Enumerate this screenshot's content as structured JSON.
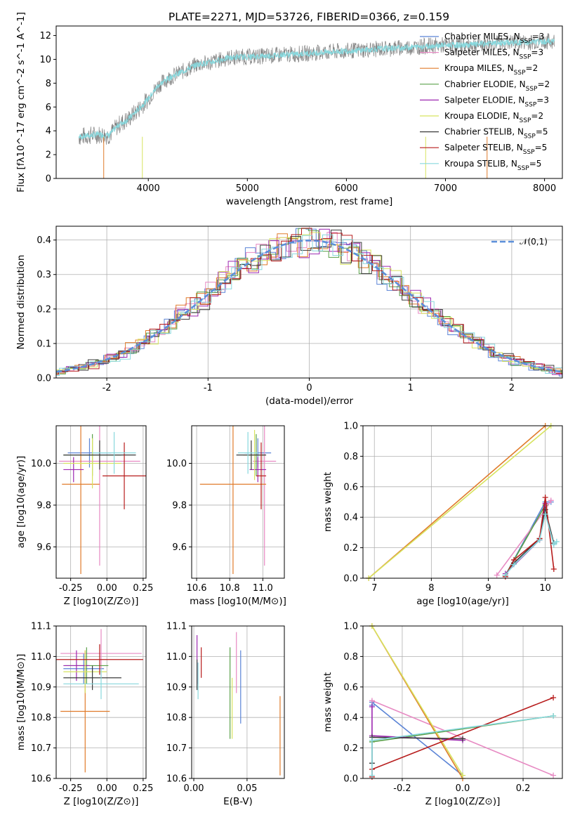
{
  "title": "PLATE=2271, MJD=53726, FIBERID=0366, z=0.159",
  "legend": [
    {
      "label": "Chabrier MILES, N_SSP=3",
      "color": "#5b84d6"
    },
    {
      "label": "Salpeter MILES, N_SSP=3",
      "color": "#e78ac3"
    },
    {
      "label": "Kroupa MILES, N_SSP=2",
      "color": "#e07b2b"
    },
    {
      "label": "Chabrier ELODIE, N_SSP=2",
      "color": "#5aa04a"
    },
    {
      "label": "Salpeter ELODIE, N_SSP=3",
      "color": "#9c27b0"
    },
    {
      "label": "Kroupa ELODIE, N_SSP=2",
      "color": "#d7e35f"
    },
    {
      "label": "Chabrier STELIB, N_SSP=5",
      "color": "#3b3b3b"
    },
    {
      "label": "Salpeter STELIB, N_SSP=5",
      "color": "#b71c1c"
    },
    {
      "label": "Kroupa STELIB, N_SSP=5",
      "color": "#88d8dd"
    }
  ],
  "chart_data": [
    {
      "type": "line",
      "panel": "spectrum",
      "title": "PLATE=2271, MJD=53726, FIBERID=0366, z=0.159",
      "xlabel": "wavelength [Angstrom, rest frame]",
      "ylabel": "Flux [fλ10^-17 erg cm^-2 s^-1 A^-1]",
      "xlim": [
        3070,
        8180
      ],
      "ylim": [
        0,
        12.8
      ],
      "xticks": [
        4000,
        5000,
        6000,
        7000,
        8000
      ],
      "yticks": [
        0,
        2,
        4,
        6,
        8,
        10,
        12
      ],
      "data_color": "#808080",
      "model_color": "#88d8dd",
      "x": [
        3300,
        3400,
        3500,
        3600,
        3700,
        3800,
        3900,
        4000,
        4100,
        4200,
        4300,
        4400,
        4500,
        4600,
        4700,
        4800,
        4900,
        5000,
        5200,
        5400,
        5600,
        5800,
        6000,
        6200,
        6400,
        6600,
        6800,
        7000,
        7200,
        7400,
        7600,
        7800,
        8000,
        8100
      ],
      "y": [
        3.5,
        3.6,
        3.7,
        3.6,
        4.5,
        5.0,
        5.8,
        6.7,
        7.8,
        8.4,
        8.8,
        9.2,
        9.6,
        9.7,
        9.9,
        10.1,
        10.2,
        10.2,
        10.3,
        10.4,
        10.5,
        10.6,
        10.7,
        10.8,
        10.9,
        11.0,
        11.1,
        11.2,
        11.2,
        11.3,
        11.4,
        11.4,
        11.5,
        11.5
      ]
    },
    {
      "type": "line",
      "panel": "residuals",
      "xlabel": "(data-model)/error",
      "ylabel": "Normed distribution",
      "xlim": [
        -2.5,
        2.5
      ],
      "ylim": [
        0,
        0.44
      ],
      "xticks": [
        -2,
        -1,
        0,
        1,
        2
      ],
      "yticks": [
        0.0,
        0.1,
        0.2,
        0.3,
        0.4
      ],
      "series": [
        {
          "name": "𝒩(0,1)",
          "color": "#5b8fd9"
        }
      ],
      "bin_width": 0.1
    },
    {
      "type": "scatter",
      "panel": "age-vs-Z",
      "xlabel": "Z [log10(Z/Z⊙)]",
      "ylabel": "age  [log10(age/yr)]",
      "xlim": [
        -0.35,
        0.27
      ],
      "ylim": [
        9.45,
        10.18
      ],
      "xticks": [
        -0.25,
        0.0,
        0.25
      ],
      "yticks": [
        9.6,
        9.8,
        10.0
      ],
      "points": [
        {
          "x": -0.12,
          "y": 10.05,
          "xe": 0.15,
          "ye": 0.07,
          "c": 0
        },
        {
          "x": -0.05,
          "y": 10.01,
          "xe": 0.28,
          "ye": 0.5,
          "c": 1
        },
        {
          "x": -0.18,
          "y": 9.9,
          "xe": 0.13,
          "ye": 0.43,
          "c": 2
        },
        {
          "x": -0.1,
          "y": 10.04,
          "xe": 0.2,
          "ye": 0.1,
          "c": 3
        },
        {
          "x": -0.23,
          "y": 9.97,
          "xe": 0.07,
          "ye": 0.06,
          "c": 4
        },
        {
          "x": -0.1,
          "y": 10.0,
          "xe": 0.2,
          "ye": 0.12,
          "c": 5
        },
        {
          "x": -0.05,
          "y": 10.04,
          "xe": 0.25,
          "ye": 0.07,
          "c": 6
        },
        {
          "x": 0.12,
          "y": 9.94,
          "xe": 0.15,
          "ye": 0.16,
          "c": 7
        },
        {
          "x": 0.05,
          "y": 10.05,
          "xe": 0.15,
          "ye": 0.1,
          "c": 8
        }
      ]
    },
    {
      "type": "scatter",
      "panel": "age-vs-mass",
      "xlabel": "mass [log10(M/M⊙)]",
      "ylabel": "",
      "xlim": [
        10.57,
        11.13
      ],
      "ylim": [
        9.45,
        10.18
      ],
      "xticks": [
        10.6,
        10.8,
        11.0
      ],
      "yticks": [
        9.6,
        9.8,
        10.0
      ],
      "points": [
        {
          "x": 10.97,
          "y": 10.05,
          "xe": 0.08,
          "ye": 0.07,
          "c": 0
        },
        {
          "x": 11.01,
          "y": 10.01,
          "xe": 0.07,
          "ye": 0.5,
          "c": 1
        },
        {
          "x": 10.82,
          "y": 9.9,
          "xe": 0.2,
          "ye": 0.43,
          "c": 2
        },
        {
          "x": 10.96,
          "y": 10.04,
          "xe": 0.05,
          "ye": 0.1,
          "c": 3
        },
        {
          "x": 10.97,
          "y": 9.97,
          "xe": 0.05,
          "ye": 0.06,
          "c": 4
        },
        {
          "x": 10.95,
          "y": 10.04,
          "xe": 0.07,
          "ye": 0.12,
          "c": 5
        },
        {
          "x": 10.93,
          "y": 10.04,
          "xe": 0.09,
          "ye": 0.07,
          "c": 6
        },
        {
          "x": 10.99,
          "y": 9.94,
          "xe": 0.03,
          "ye": 0.16,
          "c": 7
        },
        {
          "x": 10.91,
          "y": 10.05,
          "xe": 0.06,
          "ye": 0.1,
          "c": 8
        }
      ]
    },
    {
      "type": "line",
      "panel": "mass-weight-vs-age",
      "xlabel": "age  [log10(age/yr)]",
      "ylabel": "mass weight",
      "xlim": [
        6.8,
        10.3
      ],
      "ylim": [
        0,
        1.0
      ],
      "xticks": [
        7,
        8,
        9,
        10
      ],
      "yticks": [
        0.0,
        0.2,
        0.4,
        0.6,
        0.8,
        1.0
      ],
      "series": [
        {
          "c": 0,
          "x": [
            9.3,
            10.0,
            10.1
          ],
          "y": [
            0.02,
            0.5,
            0.5
          ]
        },
        {
          "c": 1,
          "x": [
            9.15,
            10.0,
            10.1
          ],
          "y": [
            0.02,
            0.45,
            0.51
          ]
        },
        {
          "c": 2,
          "x": [
            6.9,
            10.0
          ],
          "y": [
            0.0,
            1.0
          ]
        },
        {
          "c": 3,
          "x": [
            9.3,
            10.0
          ],
          "y": [
            0.02,
            0.48
          ]
        },
        {
          "c": 4,
          "x": [
            9.3,
            9.9,
            10.0
          ],
          "y": [
            0.03,
            0.25,
            0.49
          ]
        },
        {
          "c": 5,
          "x": [
            6.9,
            10.1
          ],
          "y": [
            0.0,
            1.0
          ]
        },
        {
          "c": 6,
          "x": [
            9.3,
            9.45,
            9.9,
            10.0,
            10.15
          ],
          "y": [
            0.02,
            0.1,
            0.26,
            0.45,
            0.23
          ]
        },
        {
          "c": 7,
          "x": [
            9.3,
            9.45,
            9.9,
            10.0,
            10.15
          ],
          "y": [
            0.01,
            0.12,
            0.26,
            0.53,
            0.06
          ]
        },
        {
          "c": 8,
          "x": [
            9.3,
            9.45,
            9.9,
            10.0,
            10.15,
            10.2
          ],
          "y": [
            0.02,
            0.09,
            0.25,
            0.42,
            0.22,
            0.24
          ]
        }
      ]
    },
    {
      "type": "scatter",
      "panel": "mass-vs-Z",
      "xlabel": "Z [log10(Z/Z⊙)]",
      "ylabel": "mass [log10(M/M⊙)]",
      "xlim": [
        -0.35,
        0.27
      ],
      "ylim": [
        10.6,
        11.1
      ],
      "xticks": [
        -0.25,
        0.0,
        0.25
      ],
      "yticks": [
        10.6,
        10.7,
        10.8,
        10.9,
        11.0,
        11.1
      ],
      "points": [
        {
          "x": -0.16,
          "y": 10.96,
          "xe": 0.14,
          "ye": 0.05,
          "c": 0
        },
        {
          "x": -0.04,
          "y": 11.01,
          "xe": 0.28,
          "ye": 0.08,
          "c": 1
        },
        {
          "x": -0.15,
          "y": 10.82,
          "xe": 0.17,
          "ye": 0.2,
          "c": 2
        },
        {
          "x": -0.14,
          "y": 10.97,
          "xe": 0.15,
          "ye": 0.06,
          "c": 3
        },
        {
          "x": -0.21,
          "y": 10.97,
          "xe": 0.09,
          "ye": 0.05,
          "c": 4
        },
        {
          "x": -0.15,
          "y": 10.95,
          "xe": 0.15,
          "ye": 0.07,
          "c": 5
        },
        {
          "x": -0.1,
          "y": 10.93,
          "xe": 0.2,
          "ye": 0.04,
          "c": 6
        },
        {
          "x": -0.05,
          "y": 10.99,
          "xe": 0.3,
          "ye": 0.05,
          "c": 7
        },
        {
          "x": -0.04,
          "y": 10.91,
          "xe": 0.26,
          "ye": 0.05,
          "c": 8
        }
      ]
    },
    {
      "type": "scatter",
      "panel": "mass-vs-EBV",
      "xlabel": "E(B-V)",
      "ylabel": "",
      "xlim": [
        -0.002,
        0.085
      ],
      "ylim": [
        10.6,
        11.1
      ],
      "xticks": [
        0.0,
        0.05
      ],
      "yticks": [
        10.6,
        10.7,
        10.8,
        10.9,
        11.0,
        11.1
      ],
      "points": [
        {
          "x": 0.044,
          "y": 10.9,
          "ye": 0.12,
          "c": 0
        },
        {
          "x": 0.04,
          "y": 10.98,
          "ye": 0.1,
          "c": 1
        },
        {
          "x": 0.081,
          "y": 10.74,
          "ye": 0.13,
          "c": 2
        },
        {
          "x": 0.034,
          "y": 10.88,
          "ye": 0.15,
          "c": 3
        },
        {
          "x": 0.003,
          "y": 10.99,
          "ye": 0.08,
          "c": 4
        },
        {
          "x": 0.036,
          "y": 10.83,
          "ye": 0.1,
          "c": 5
        },
        {
          "x": 0.003,
          "y": 10.94,
          "ye": 0.05,
          "c": 6
        },
        {
          "x": 0.007,
          "y": 10.98,
          "ye": 0.05,
          "c": 7
        },
        {
          "x": 0.004,
          "y": 10.92,
          "ye": 0.06,
          "c": 8
        }
      ]
    },
    {
      "type": "line",
      "panel": "mass-weight-vs-Z",
      "xlabel": "Z [log10(Z/Z⊙)]",
      "ylabel": "mass weight",
      "xlim": [
        -0.33,
        0.33
      ],
      "ylim": [
        0,
        1.0
      ],
      "xticks": [
        -0.2,
        0.0,
        0.2
      ],
      "yticks": [
        0.0,
        0.2,
        0.4,
        0.6,
        0.8,
        1.0
      ],
      "series": [
        {
          "c": 0,
          "x": [
            -0.3,
            -0.3,
            0.0
          ],
          "y": [
            0.48,
            0.5,
            0.02
          ]
        },
        {
          "c": 1,
          "x": [
            -0.3,
            0.3
          ],
          "y": [
            0.51,
            0.02
          ]
        },
        {
          "c": 2,
          "x": [
            -0.3,
            0.0
          ],
          "y": [
            1.0,
            0.0
          ]
        },
        {
          "c": 3,
          "x": [
            -0.3,
            0.3
          ],
          "y": [
            0.24,
            0.41
          ]
        },
        {
          "c": 4,
          "x": [
            -0.3,
            -0.3,
            0.0
          ],
          "y": [
            0.47,
            0.28,
            0.25
          ]
        },
        {
          "c": 5,
          "x": [
            -0.3,
            0.0
          ],
          "y": [
            1.0,
            0.02
          ]
        },
        {
          "c": 6,
          "x": [
            -0.3,
            -0.3,
            0.0
          ],
          "y": [
            0.1,
            0.27,
            0.26
          ]
        },
        {
          "c": 7,
          "x": [
            -0.3,
            -0.3,
            0.3
          ],
          "y": [
            0.01,
            0.06,
            0.53
          ]
        },
        {
          "c": 8,
          "x": [
            -0.3,
            -0.3,
            0.3
          ],
          "y": [
            0.02,
            0.25,
            0.41
          ]
        }
      ]
    }
  ]
}
